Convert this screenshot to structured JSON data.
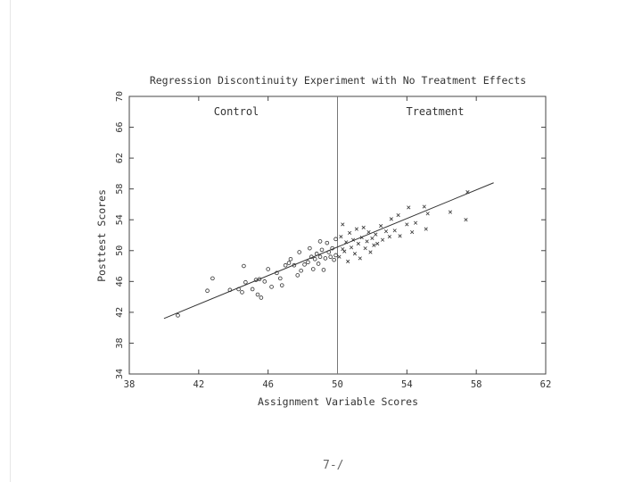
{
  "chart_data": {
    "type": "scatter",
    "title": "Regression Discontinuity Experiment with No Treatment Effects",
    "xlabel": "Assignment Variable Scores",
    "ylabel": "Posttest Scores",
    "xlim": [
      38,
      62
    ],
    "ylim": [
      34,
      70
    ],
    "xticks": [
      "38",
      "42",
      "46",
      "50",
      "54",
      "58",
      "62"
    ],
    "yticks": [
      "34",
      "38",
      "42",
      "46",
      "50",
      "54",
      "58",
      "62",
      "66",
      "70"
    ],
    "cutoff": 50,
    "group_labels": {
      "control": "Control",
      "treatment": "Treatment"
    },
    "regression_line": {
      "x": [
        40,
        59
      ],
      "y": [
        41.2,
        58.8
      ]
    },
    "series": [
      {
        "name": "Control",
        "marker": "o",
        "points": [
          [
            40.8,
            41.6
          ],
          [
            42.5,
            44.8
          ],
          [
            42.8,
            46.4
          ],
          [
            43.8,
            44.9
          ],
          [
            44.3,
            45.0
          ],
          [
            44.5,
            44.6
          ],
          [
            44.6,
            48.0
          ],
          [
            44.7,
            45.9
          ],
          [
            45.1,
            45.0
          ],
          [
            45.3,
            46.2
          ],
          [
            45.4,
            44.3
          ],
          [
            45.5,
            46.3
          ],
          [
            45.6,
            43.9
          ],
          [
            45.8,
            46.0
          ],
          [
            46.0,
            47.6
          ],
          [
            46.2,
            45.3
          ],
          [
            46.5,
            47.1
          ],
          [
            46.7,
            46.4
          ],
          [
            46.8,
            45.5
          ],
          [
            47.0,
            48.1
          ],
          [
            47.2,
            48.4
          ],
          [
            47.3,
            48.9
          ],
          [
            47.5,
            48.1
          ],
          [
            47.7,
            46.8
          ],
          [
            47.8,
            49.8
          ],
          [
            47.9,
            47.4
          ],
          [
            48.1,
            48.2
          ],
          [
            48.3,
            48.5
          ],
          [
            48.5,
            49.2
          ],
          [
            48.6,
            47.6
          ],
          [
            48.7,
            48.9
          ],
          [
            48.8,
            49.6
          ],
          [
            48.9,
            48.3
          ],
          [
            49.0,
            49.2
          ],
          [
            49.1,
            50.1
          ],
          [
            49.2,
            47.5
          ],
          [
            49.3,
            49.0
          ],
          [
            49.4,
            51.0
          ],
          [
            49.5,
            49.8
          ],
          [
            49.6,
            49.2
          ],
          [
            49.7,
            50.3
          ],
          [
            49.8,
            48.8
          ],
          [
            49.9,
            51.5
          ],
          [
            49.9,
            49.4
          ],
          [
            48.4,
            50.3
          ],
          [
            49.0,
            51.2
          ]
        ]
      },
      {
        "name": "Treatment",
        "marker": "x",
        "points": [
          [
            50.1,
            49.2
          ],
          [
            50.2,
            51.8
          ],
          [
            50.3,
            50.2
          ],
          [
            50.3,
            53.4
          ],
          [
            50.4,
            49.9
          ],
          [
            50.5,
            51.1
          ],
          [
            50.6,
            48.6
          ],
          [
            50.7,
            52.3
          ],
          [
            50.8,
            50.4
          ],
          [
            50.9,
            51.4
          ],
          [
            51.0,
            49.6
          ],
          [
            51.1,
            52.8
          ],
          [
            51.2,
            50.9
          ],
          [
            51.3,
            49.0
          ],
          [
            51.4,
            51.7
          ],
          [
            51.5,
            53.0
          ],
          [
            51.6,
            50.3
          ],
          [
            51.7,
            51.2
          ],
          [
            51.8,
            52.4
          ],
          [
            51.9,
            49.8
          ],
          [
            52.0,
            51.6
          ],
          [
            52.1,
            50.7
          ],
          [
            52.2,
            52.1
          ],
          [
            52.3,
            50.9
          ],
          [
            52.5,
            53.2
          ],
          [
            52.6,
            51.4
          ],
          [
            52.8,
            52.5
          ],
          [
            53.0,
            51.8
          ],
          [
            53.1,
            54.1
          ],
          [
            53.3,
            52.6
          ],
          [
            53.5,
            54.6
          ],
          [
            53.6,
            51.9
          ],
          [
            54.0,
            53.4
          ],
          [
            54.1,
            55.6
          ],
          [
            54.3,
            52.4
          ],
          [
            54.5,
            53.6
          ],
          [
            55.0,
            55.7
          ],
          [
            55.1,
            52.8
          ],
          [
            55.2,
            54.8
          ],
          [
            56.5,
            55.0
          ],
          [
            57.4,
            54.0
          ],
          [
            57.5,
            57.6
          ]
        ]
      }
    ],
    "grid": false,
    "legend": "none"
  },
  "page": {
    "number": "7-/"
  }
}
